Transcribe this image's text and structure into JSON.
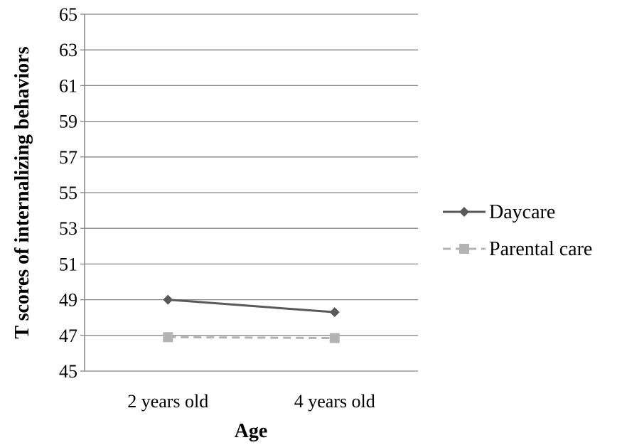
{
  "chart_data": {
    "type": "line",
    "title": "",
    "xlabel": "Age",
    "ylabel": "T scores of internalizing behaviors",
    "categories": [
      "2 years old",
      "4 years old"
    ],
    "ylim": [
      45,
      65
    ],
    "yticks": [
      45,
      47,
      49,
      51,
      53,
      55,
      57,
      59,
      61,
      63,
      65
    ],
    "grid": true,
    "legend_position": "right",
    "series": [
      {
        "name": "Daycare",
        "values": [
          49.0,
          48.3
        ],
        "color": "#595959",
        "marker": "diamond",
        "line": "solid"
      },
      {
        "name": "Parental care",
        "values": [
          46.9,
          46.85
        ],
        "color": "#b3b3b3",
        "marker": "square",
        "line": "dashed"
      }
    ]
  }
}
